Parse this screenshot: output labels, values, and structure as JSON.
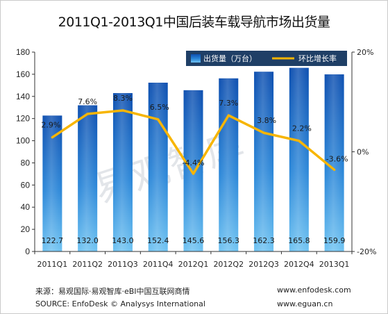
{
  "title": "2011Q1-2013Q1中国后装车载导航市场出货量",
  "watermark": "易观智库",
  "legend": {
    "bar_label": "出货量（万台）",
    "line_label": "环比增长率",
    "bar_color": "#1e73c8",
    "line_color": "#f7b500",
    "background": "#1f3f66"
  },
  "footer": {
    "source_cn": "来源：易观国际·易观智库·eBI中国互联网商情",
    "source_en": "SOURCE: EnfoDesk © Analysys International",
    "url1": "www.enfodesk.com",
    "url2": "www.eguan.cn"
  },
  "chart_data": {
    "type": "bar",
    "title": "2011Q1-2013Q1中国后装车载导航市场出货量",
    "categories": [
      "2011Q1",
      "2011Q2",
      "2011Q3",
      "2011Q4",
      "2012Q1",
      "2012Q2",
      "2012Q3",
      "2012Q4",
      "2013Q1"
    ],
    "series": [
      {
        "name": "出货量（万台）",
        "type": "bar",
        "axis": "left",
        "values": [
          122.7,
          132.0,
          143.0,
          152.4,
          145.6,
          156.3,
          162.3,
          165.8,
          159.9
        ],
        "labels": [
          "122.7",
          "132.0",
          "143.0",
          "152.4",
          "145.6",
          "156.3",
          "162.3",
          "165.8",
          "159.9"
        ]
      },
      {
        "name": "环比增长率",
        "type": "line",
        "axis": "right",
        "values": [
          2.9,
          7.6,
          8.3,
          6.5,
          -4.4,
          7.3,
          3.8,
          2.2,
          -3.6
        ],
        "labels": [
          "2.9%",
          "7.6%",
          "8.3%",
          "6.5%",
          "-4.4%",
          "7.3%",
          "3.8%",
          "2.2%",
          "-3.6%"
        ]
      }
    ],
    "ylim": [
      0,
      180
    ],
    "yticks": [
      "0",
      "20",
      "40",
      "60",
      "80",
      "100",
      "120",
      "140",
      "160",
      "180"
    ],
    "y2lim": [
      -20,
      20
    ],
    "y2ticks": [
      "-20%",
      "0%",
      "20%"
    ],
    "legend_position": "top-right",
    "grid": false
  }
}
